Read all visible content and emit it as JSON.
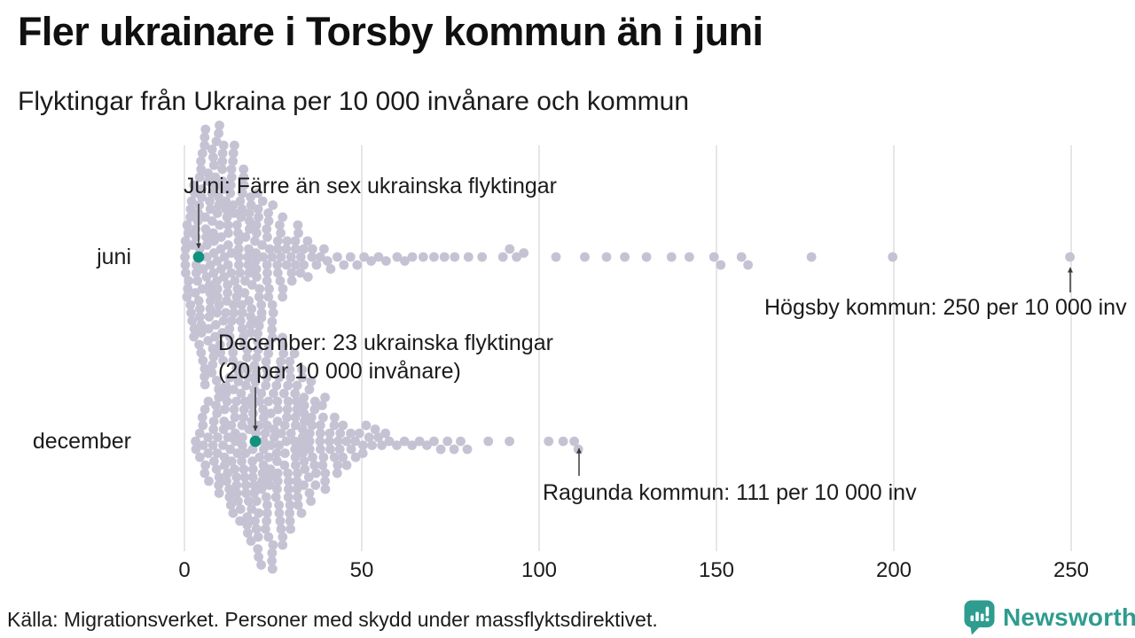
{
  "title": "Fler ukrainare i Torsby kommun än i juni",
  "subtitle": "Flyktingar från Ukraina per 10 000 invånare och kommun",
  "source": "Källa: Migrationsverket. Personer med skydd under massflyktsdirektivet.",
  "logo": {
    "name": "Newsworthy",
    "color": "#2e9c8f"
  },
  "colors": {
    "dot": "#c5c3d3",
    "highlight": "#13917f",
    "gridline": "#d9d8dd",
    "arrow": "#3a3a3a",
    "text": "#1b1b1b"
  },
  "axis": {
    "ticks": [
      0,
      50,
      100,
      150,
      200,
      250
    ],
    "min": 0,
    "max": 250
  },
  "rows": [
    {
      "label": "juni"
    },
    {
      "label": "december"
    }
  ],
  "annotations": {
    "juni_highlight": "Juni: Färre än sex ukrainska flyktingar",
    "juni_max": "Högsby kommun: 250 per 10 000 inv",
    "december_highlight_line1": "December: 23 ukrainska flyktingar",
    "december_highlight_line2": "(20 per 10 000 invånare)",
    "december_max": "Ragunda kommun: 111 per 10 000 inv"
  },
  "chart_data": {
    "type": "beeswarm",
    "title": "Fler ukrainare i Torsby kommun än i juni",
    "subtitle": "Flyktingar från Ukraina per 10 000 invånare och kommun",
    "unit": "flyktingar per 10 000 invånare per kommun",
    "xlim": [
      0,
      260
    ],
    "xticks": [
      0,
      50,
      100,
      150,
      200,
      250
    ],
    "grid": "vertical",
    "hist_format": "[value_per_10000, municipality_count] (values estimated from pixels)",
    "series": [
      {
        "name": "juni",
        "highlight": {
          "label": "Torsby kommun (juni)",
          "value": 4,
          "note": "Färre än sex ukrainska flyktingar"
        },
        "max_point": {
          "label": "Högsby kommun",
          "value": 250
        },
        "values_hist": [
          [
            0,
            5
          ],
          [
            1,
            5
          ],
          [
            2,
            7
          ],
          [
            3,
            9
          ],
          [
            4,
            11
          ],
          [
            5,
            11
          ],
          [
            6,
            12
          ],
          [
            7,
            12
          ],
          [
            8,
            13
          ],
          [
            9,
            12
          ],
          [
            10,
            12
          ],
          [
            11,
            11
          ],
          [
            12,
            11
          ],
          [
            13,
            10
          ],
          [
            14,
            10
          ],
          [
            15,
            9
          ],
          [
            16,
            9
          ],
          [
            17,
            8
          ],
          [
            18,
            8
          ],
          [
            19,
            7
          ],
          [
            20,
            7
          ],
          [
            21,
            6
          ],
          [
            22,
            5
          ],
          [
            23,
            5
          ],
          [
            24,
            5
          ],
          [
            25,
            4
          ],
          [
            26,
            4
          ],
          [
            27,
            4
          ],
          [
            28,
            3
          ],
          [
            29,
            3
          ],
          [
            30,
            3
          ],
          [
            31,
            3
          ],
          [
            32,
            2
          ],
          [
            33,
            2
          ],
          [
            34,
            2
          ],
          [
            35,
            2
          ],
          [
            36,
            2
          ],
          [
            37,
            1
          ],
          [
            38,
            1
          ],
          [
            39,
            1
          ],
          [
            40,
            1
          ],
          [
            41,
            1
          ],
          [
            43,
            1
          ],
          [
            45,
            1
          ],
          [
            47,
            1
          ],
          [
            49,
            1
          ],
          [
            51,
            1
          ],
          [
            53,
            1
          ],
          [
            55,
            1
          ],
          [
            57,
            1
          ],
          [
            60,
            1
          ],
          [
            62,
            1
          ],
          [
            64,
            1
          ],
          [
            67,
            1
          ],
          [
            70,
            1
          ],
          [
            73,
            1
          ],
          [
            76,
            1
          ],
          [
            80,
            1
          ],
          [
            84,
            1
          ],
          [
            90,
            1
          ],
          [
            92,
            1
          ],
          [
            94,
            1
          ],
          [
            96,
            1
          ],
          [
            105,
            1
          ],
          [
            113,
            1
          ],
          [
            119,
            1
          ],
          [
            124,
            1
          ],
          [
            130,
            1
          ],
          [
            137,
            1
          ],
          [
            142,
            1
          ],
          [
            149,
            1
          ],
          [
            151,
            1
          ],
          [
            157,
            1
          ],
          [
            159,
            1
          ],
          [
            177,
            1
          ],
          [
            200,
            1
          ],
          [
            250,
            1
          ]
        ]
      },
      {
        "name": "december",
        "highlight": {
          "label": "Torsby kommun (december)",
          "value": 20,
          "note": "23 ukrainska flyktingar (20 per 10 000 invånare)"
        },
        "max_point": {
          "label": "Ragunda kommun",
          "value": 111
        },
        "values_hist": [
          [
            3,
            2
          ],
          [
            4,
            2
          ],
          [
            5,
            3
          ],
          [
            6,
            3
          ],
          [
            7,
            4
          ],
          [
            8,
            4
          ],
          [
            9,
            5
          ],
          [
            10,
            5
          ],
          [
            11,
            6
          ],
          [
            12,
            6
          ],
          [
            13,
            7
          ],
          [
            14,
            7
          ],
          [
            15,
            8
          ],
          [
            16,
            8
          ],
          [
            17,
            9
          ],
          [
            18,
            9
          ],
          [
            19,
            10
          ],
          [
            20,
            12
          ],
          [
            21,
            11
          ],
          [
            22,
            11
          ],
          [
            23,
            11
          ],
          [
            24,
            10
          ],
          [
            25,
            10
          ],
          [
            26,
            10
          ],
          [
            27,
            9
          ],
          [
            28,
            9
          ],
          [
            29,
            9
          ],
          [
            30,
            8
          ],
          [
            31,
            8
          ],
          [
            32,
            8
          ],
          [
            33,
            7
          ],
          [
            34,
            7
          ],
          [
            35,
            6
          ],
          [
            36,
            5
          ],
          [
            37,
            5
          ],
          [
            38,
            4
          ],
          [
            39,
            4
          ],
          [
            40,
            4
          ],
          [
            41,
            3
          ],
          [
            42,
            3
          ],
          [
            43,
            3
          ],
          [
            44,
            2
          ],
          [
            45,
            2
          ],
          [
            46,
            2
          ],
          [
            47,
            2
          ],
          [
            48,
            2
          ],
          [
            49,
            1
          ],
          [
            50,
            2
          ],
          [
            51,
            1
          ],
          [
            52,
            1
          ],
          [
            53,
            1
          ],
          [
            54,
            1
          ],
          [
            55,
            1
          ],
          [
            56,
            1
          ],
          [
            57,
            1
          ],
          [
            58,
            1
          ],
          [
            60,
            1
          ],
          [
            62,
            1
          ],
          [
            64,
            1
          ],
          [
            66,
            1
          ],
          [
            68,
            1
          ],
          [
            70,
            1
          ],
          [
            72,
            1
          ],
          [
            74,
            1
          ],
          [
            76,
            1
          ],
          [
            78,
            1
          ],
          [
            80,
            1
          ],
          [
            86,
            1
          ],
          [
            92,
            1
          ],
          [
            103,
            1
          ],
          [
            107,
            1
          ],
          [
            110,
            1
          ],
          [
            111,
            1
          ]
        ]
      }
    ]
  }
}
